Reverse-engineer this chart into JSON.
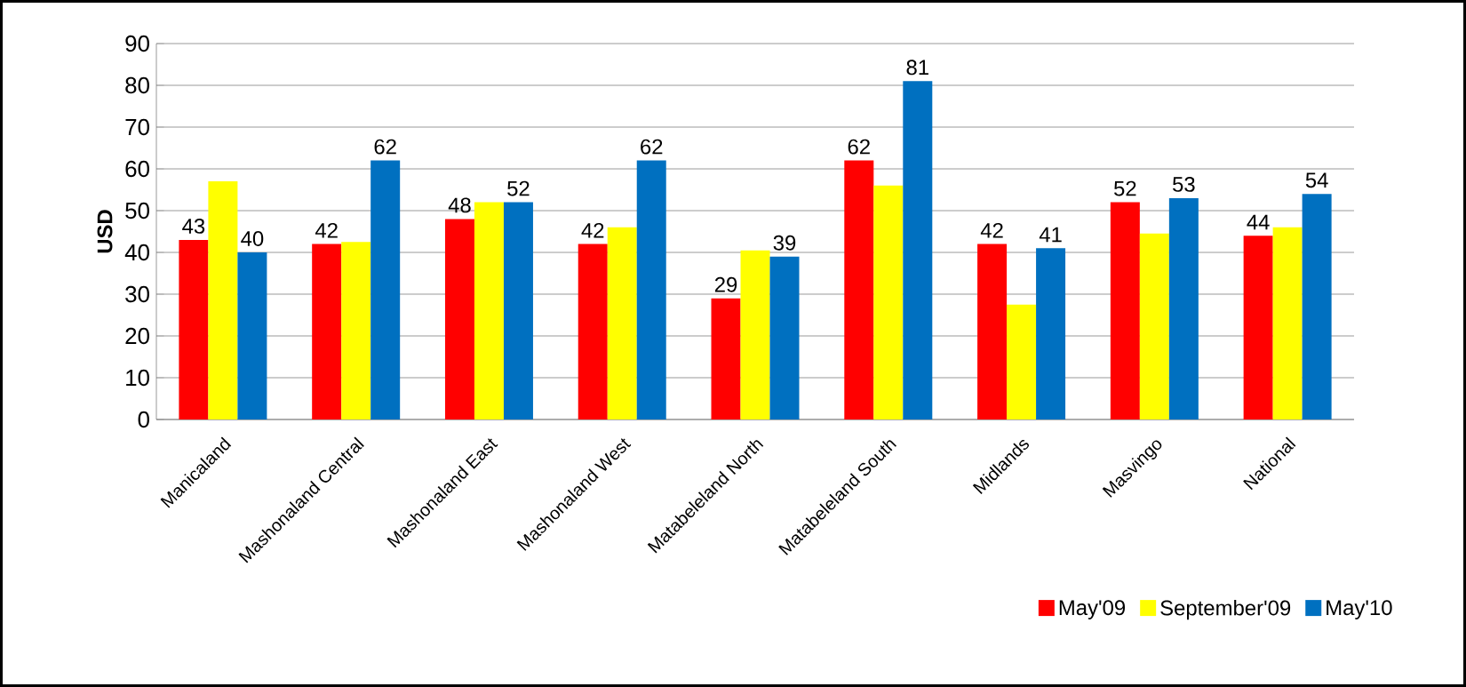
{
  "chart_data": {
    "type": "bar",
    "ylabel": "USD",
    "categories": [
      "Manicaland",
      "Mashonaland Central",
      "Mashonaland East",
      "Mashonaland West",
      "Matabeleland North",
      "Matabeleland South",
      "Midlands",
      "Masvingo",
      "National"
    ],
    "series": [
      {
        "name": "May'09",
        "color": "#ff0000",
        "values": [
          43,
          42,
          48,
          42,
          29,
          62,
          42,
          52,
          44
        ],
        "value_labels": [
          "43",
          "42",
          "48",
          "42",
          "29",
          "62",
          "42",
          "52",
          "44"
        ]
      },
      {
        "name": "September'09",
        "color": "#ffff00",
        "values": [
          57,
          42.5,
          52,
          46,
          40.5,
          56,
          27.5,
          44.5,
          46
        ]
      },
      {
        "name": "May'10",
        "color": "#0070c0",
        "values": [
          40,
          62,
          52,
          62,
          39,
          81,
          41,
          53,
          54
        ],
        "value_labels": [
          "40",
          "62",
          "52",
          "62",
          "39",
          "81",
          "41",
          "53",
          "54"
        ]
      }
    ],
    "ylim": [
      0,
      90
    ],
    "yticks": [
      0,
      10,
      20,
      30,
      40,
      50,
      60,
      70,
      80,
      90
    ],
    "grid": "y",
    "legend": "bottom right"
  }
}
